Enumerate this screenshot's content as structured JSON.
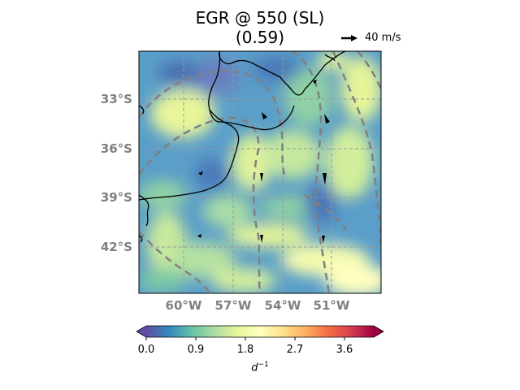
{
  "title_line1": "EGR @ 550 (SL)",
  "title_line2": "(0.59)",
  "reference_vector_label": "40 m/s",
  "latitude_labels": [
    "33°S",
    "36°S",
    "39°S",
    "42°S"
  ],
  "longitude_labels": [
    "60°W",
    "57°W",
    "54°W",
    "51°W"
  ],
  "colorbar": {
    "colormap": "Spectral_r",
    "ticks": [
      "0.0",
      "0.9",
      "1.8",
      "2.7",
      "3.6"
    ],
    "range": [
      0,
      4.2
    ],
    "label": "d",
    "label_exponent": "−1",
    "extend": "both"
  },
  "map": {
    "lon_range": [
      -62.8,
      -48.2
    ],
    "lat_range": [
      -45.6,
      -30.9
    ],
    "contour_color": "#808080",
    "coastline_color": "#000000",
    "gridline_style": "dashed"
  }
}
